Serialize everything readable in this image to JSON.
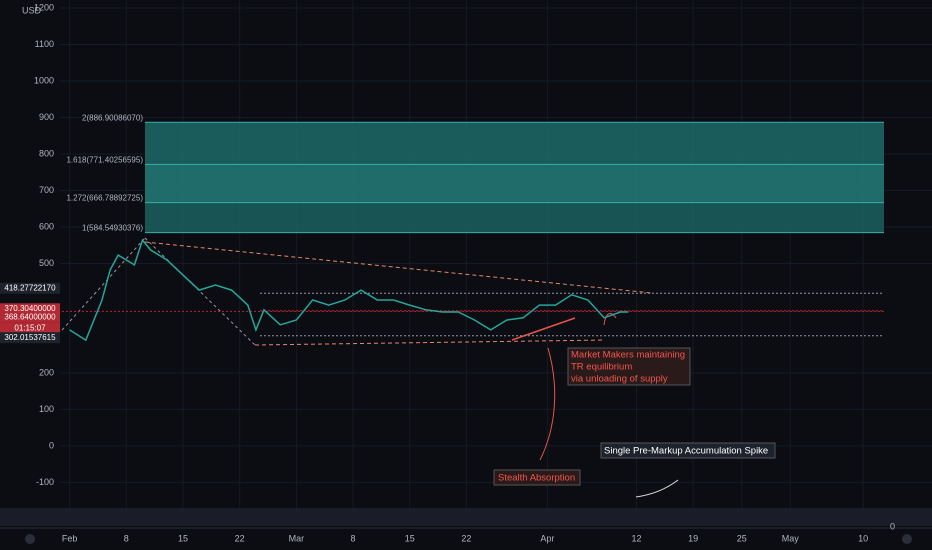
{
  "chart_data": {
    "type": "line",
    "currency": "USD",
    "x": [
      0,
      2,
      4,
      5,
      6,
      8,
      9,
      10,
      12,
      14,
      16,
      18,
      20,
      22,
      23,
      24,
      26,
      28,
      30,
      32,
      34,
      36,
      38,
      40,
      42,
      44,
      46,
      48,
      50,
      52,
      54,
      56,
      58,
      60,
      62,
      64,
      66,
      68,
      69
    ],
    "series": [
      {
        "color": "#26a69a",
        "values": [
          318,
          290,
          400,
          482,
          523,
          496,
          564,
          537,
          510,
          468,
          427,
          441,
          427,
          386,
          318,
          373,
          332,
          345,
          400,
          386,
          400,
          427,
          400,
          400,
          386,
          373,
          367,
          367,
          345,
          318,
          345,
          351,
          386,
          386,
          414,
          400,
          351,
          367,
          367
        ]
      }
    ],
    "xlim": [
      -8.6,
      106.5
    ],
    "xticks": [
      {
        "value": 0,
        "label": "Feb"
      },
      {
        "value": 7,
        "label": "8"
      },
      {
        "value": 14,
        "label": "15"
      },
      {
        "value": 21,
        "label": "22"
      },
      {
        "value": 28,
        "label": "Mar"
      },
      {
        "value": 35,
        "label": "8"
      },
      {
        "value": 42,
        "label": "15"
      },
      {
        "value": 49,
        "label": "22"
      },
      {
        "value": 59,
        "label": "Apr"
      },
      {
        "value": 70,
        "label": "12"
      },
      {
        "value": 77,
        "label": "19"
      },
      {
        "value": 83,
        "label": "25"
      },
      {
        "value": 89,
        "label": "May"
      },
      {
        "value": 98,
        "label": "10"
      }
    ],
    "ylim": [
      -203,
      1222
    ],
    "yticks": [
      1200,
      1100,
      1000,
      900,
      800,
      700,
      600,
      500,
      200,
      100,
      0,
      -100
    ],
    "fib_levels": [
      {
        "value": 886.9008607,
        "label": "2(886.90086070)"
      },
      {
        "value": 771.40256595,
        "label": "1.618(771.40256595)"
      },
      {
        "value": 666.78892725,
        "label": "1.272(666.78892725)"
      },
      {
        "value": 584.54930376,
        "label": "1(584.54930376)"
      }
    ],
    "price_levels": [
      {
        "value": 418.2772217,
        "label": "418.27722170",
        "color": "#9598a1"
      },
      {
        "value": 370.304,
        "label": "370.30400000",
        "color": "#b22833"
      },
      {
        "value": 368.64,
        "label": "368.64000000",
        "color": "#b22833"
      },
      {
        "value": 302.01537615,
        "label": "302.01537615",
        "color": "#9598a1"
      }
    ],
    "countdown": "01:15:07",
    "annotations": {
      "market_makers": [
        "Market Makers maintaining",
        "TR equilibrium",
        "via unloading of supply"
      ],
      "stealth": "Stealth Absorption",
      "spike": "Single Pre-Markup Accumulation Spike"
    },
    "volume_axis_zero": "0",
    "grid": true
  }
}
